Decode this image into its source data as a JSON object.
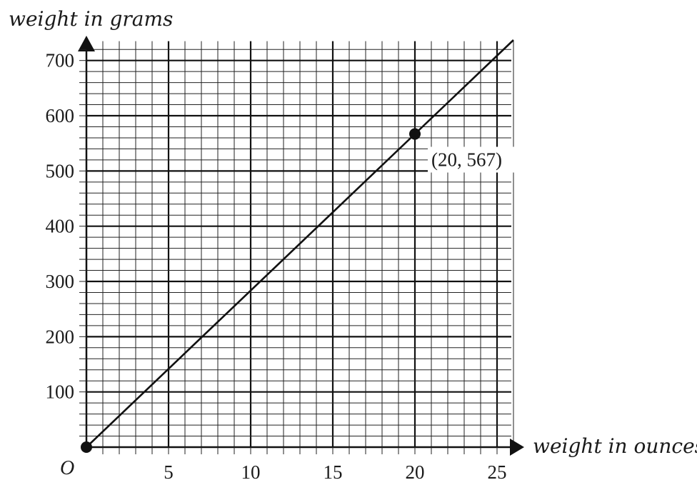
{
  "chart_data": {
    "type": "line",
    "xlabel": "weight in ounces",
    "ylabel": "weight in grams",
    "origin_label": "O",
    "xlim": [
      0,
      26
    ],
    "ylim": [
      0,
      735
    ],
    "grid": true,
    "x_ticks": [
      5,
      10,
      15,
      20,
      25
    ],
    "y_ticks": [
      100,
      200,
      300,
      400,
      500,
      600,
      700
    ],
    "x_minor_step": 1,
    "y_minor_step": 20,
    "series": [
      {
        "x": [
          0,
          26
        ],
        "y": [
          0,
          737.1
        ]
      }
    ],
    "points": [
      {
        "x": 0,
        "y": 0,
        "label": ""
      },
      {
        "x": 20,
        "y": 567,
        "label": "(20, 567)"
      }
    ]
  }
}
